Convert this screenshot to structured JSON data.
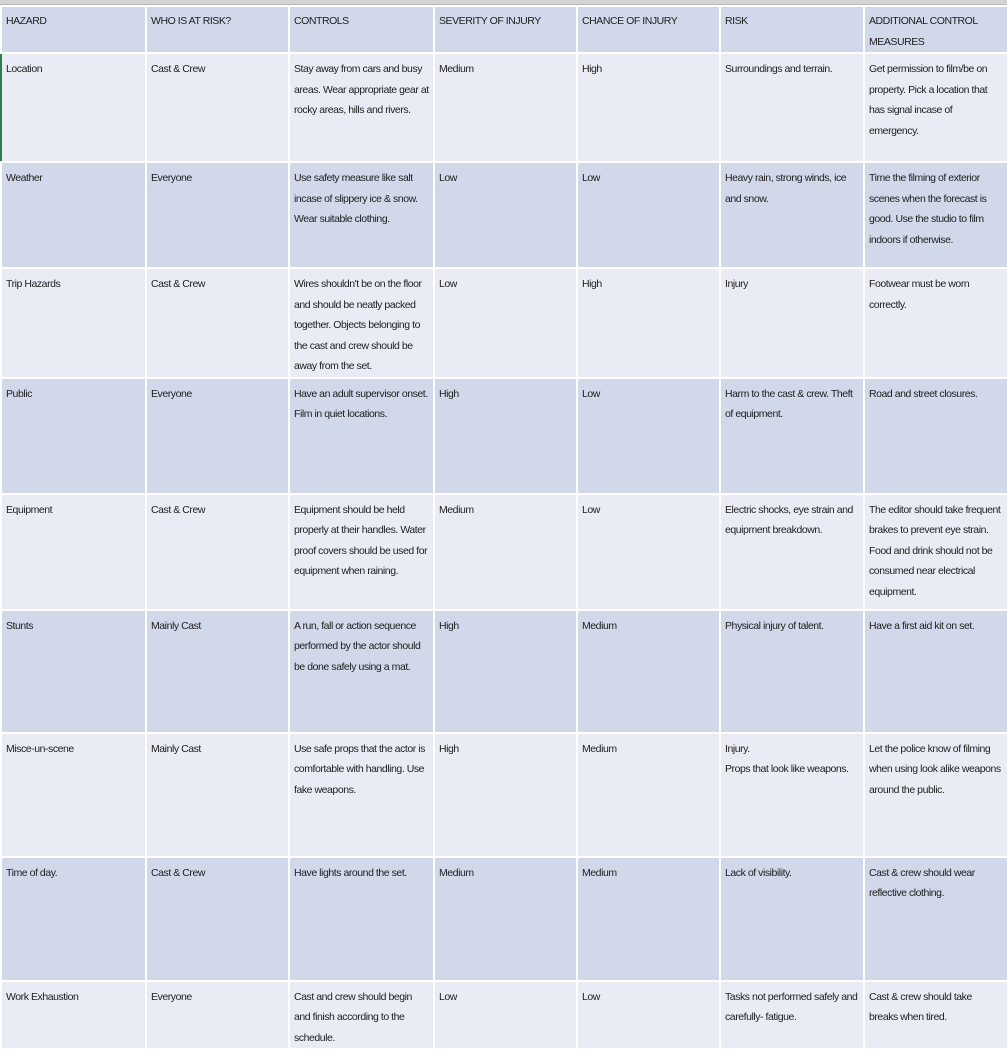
{
  "headers": [
    "HAZARD",
    "WHO IS AT RISK?",
    "CONTROLS",
    "SEVERITY OF INJURY",
    "CHANCE OF INJURY",
    "RISK",
    "ADDITIONAL CONTROL MEASURES"
  ],
  "rows": [
    [
      "Location",
      "Cast & Crew",
      "Stay away from cars and busy areas. Wear appropriate gear at rocky areas, hills and rivers.",
      "Medium",
      "High",
      "Surroundings and terrain.",
      "Get permission to film/be on property. Pick a location that has signal incase of emergency."
    ],
    [
      "Weather",
      "Everyone",
      "Use safety measure like salt incase of slippery ice & snow. Wear suitable clothing.",
      "Low",
      "Low",
      "Heavy rain, strong winds, ice and snow.",
      "Time the filming of exterior scenes when the forecast is good. Use the studio to film indoors if otherwise."
    ],
    [
      "Trip Hazards",
      "Cast & Crew",
      "Wires shouldn't be on the floor and should be neatly packed together. Objects belonging to the cast and crew should be away from the set.",
      "Low",
      "High",
      "Injury",
      "Footwear must be worn correctly."
    ],
    [
      "Public",
      "Everyone",
      "Have an adult supervisor onset. Film in quiet locations.",
      "High",
      "Low",
      "Harm to the cast & crew. Theft of equipment.",
      "Road and street closures."
    ],
    [
      "Equipment",
      "Cast & Crew",
      "Equipment should be held properly at their handles. Water proof covers should be used for equipment when raining.",
      "Medium",
      "Low",
      "Electric shocks, eye strain and equipment breakdown.",
      "The editor should take frequent brakes to prevent eye strain. Food and drink should not be consumed near electrical equipment."
    ],
    [
      "Stunts",
      "Mainly Cast",
      "A run, fall or action sequence performed by the actor should be done safely using a mat.",
      "High",
      "Medium",
      "Physical injury of talent.",
      "Have a first aid kit on set."
    ],
    [
      "Misce-un-scene",
      "Mainly Cast",
      "Use safe props that the actor is comfortable with handling. Use fake weapons.",
      "High",
      "Medium",
      "Injury.\nProps that look like weapons.",
      "Let the police know of filming when using look alike weapons around the public."
    ],
    [
      "Time of day.",
      "Cast & Crew",
      "Have lights around the set.",
      "Medium",
      "Medium",
      "Lack of visibility.",
      "Cast & crew should wear reflective clothing."
    ],
    [
      "Work Exhaustion",
      "Everyone",
      "Cast and crew should begin and finish according to the schedule.",
      "Low",
      "Low",
      "Tasks not performed safely and carefully- fatigue.",
      "Cast & crew should take breaks when tired."
    ]
  ]
}
